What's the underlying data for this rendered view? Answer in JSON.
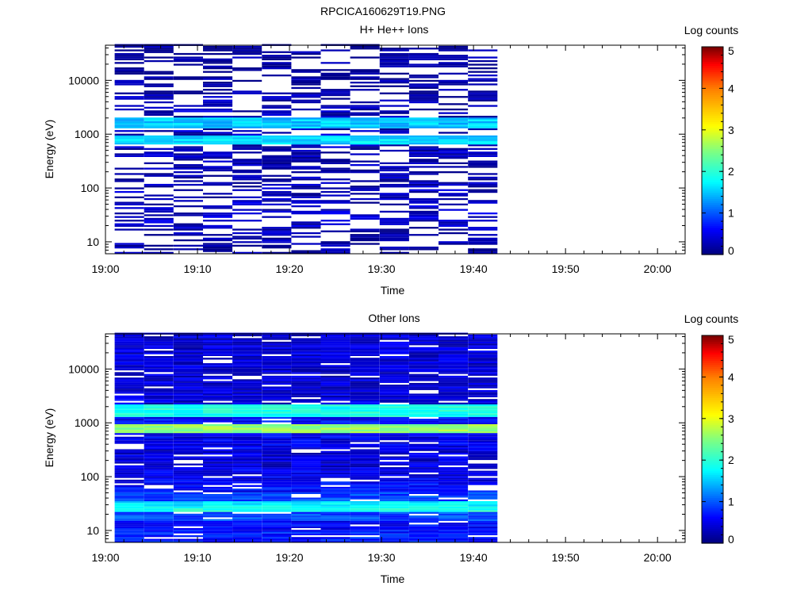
{
  "figure_title": "RPCICA160629T19.PNG",
  "chart_data": [
    {
      "type": "heatmap",
      "title": "H+ He++ Ions",
      "xlabel": "Time",
      "ylabel": "Energy (eV)",
      "x_ticks": [
        "19:00",
        "19:10",
        "19:20",
        "19:30",
        "19:40",
        "19:50",
        "20:00"
      ],
      "x_range_minutes": [
        0,
        63
      ],
      "y_scale": "log",
      "y_range": [
        6,
        45000
      ],
      "y_ticks": [
        10,
        100,
        1000,
        10000
      ],
      "colorbar": {
        "label": "Log counts",
        "range": [
          0,
          5
        ],
        "ticks": [
          0,
          1,
          2,
          3,
          4,
          5
        ],
        "colormap": "rainbow"
      },
      "time_bins_minutes": [
        1.0,
        4.2,
        7.4,
        10.6,
        13.8,
        17.0,
        20.2,
        23.4,
        26.6,
        29.8,
        33.0,
        36.2,
        39.4,
        42.6
      ],
      "data_end_minutes": 42.6,
      "seed": 7,
      "occupancy": 0.45,
      "bands": [
        {
          "energy": 10,
          "value": 0.15
        },
        {
          "energy": 16,
          "value": 0.2
        },
        {
          "energy": 22,
          "value": 0.3
        },
        {
          "energy": 35,
          "value": 0.35
        },
        {
          "energy": 50,
          "value": 0.3
        },
        {
          "energy": 80,
          "value": 0.25
        },
        {
          "energy": 150,
          "value": 0.2
        },
        {
          "energy": 300,
          "value": 0.2
        },
        {
          "energy": 500,
          "value": 0.25
        },
        {
          "energy": 800,
          "value": 1.6
        },
        {
          "energy": 1000,
          "value": 0.3
        },
        {
          "energy": 1600,
          "value": 1.5
        },
        {
          "energy": 2300,
          "value": 0.25
        },
        {
          "energy": 3000,
          "value": 0.2
        },
        {
          "energy": 10500,
          "value": 0.1
        },
        {
          "energy": 15000,
          "value": 0.1
        },
        {
          "energy": 24000,
          "value": 0.1
        },
        {
          "energy": 31000,
          "value": 0.1
        }
      ]
    },
    {
      "type": "heatmap",
      "title": "Other Ions",
      "xlabel": "Time",
      "ylabel": "Energy (eV)",
      "x_ticks": [
        "19:00",
        "19:10",
        "19:20",
        "19:30",
        "19:40",
        "19:50",
        "20:00"
      ],
      "x_range_minutes": [
        0,
        63
      ],
      "y_scale": "log",
      "y_range": [
        6,
        45000
      ],
      "y_ticks": [
        10,
        100,
        1000,
        10000
      ],
      "colorbar": {
        "label": "Log counts",
        "range": [
          0,
          5
        ],
        "ticks": [
          0,
          1,
          2,
          3,
          4,
          5
        ],
        "colormap": "rainbow"
      },
      "time_bins_minutes": [
        1.0,
        4.2,
        7.4,
        10.6,
        13.8,
        17.0,
        20.2,
        23.4,
        26.6,
        29.8,
        33.0,
        36.2,
        39.4,
        42.6
      ],
      "data_end_minutes": 42.6,
      "seed": 3,
      "occupancy": 0.9,
      "bands": [
        {
          "energy": 8,
          "value": 0.7
        },
        {
          "energy": 12,
          "value": 0.6
        },
        {
          "energy": 17,
          "value": 0.9
        },
        {
          "energy": 25,
          "value": 1.9
        },
        {
          "energy": 30,
          "value": 1.7
        },
        {
          "energy": 40,
          "value": 0.9
        },
        {
          "energy": 60,
          "value": 0.6
        },
        {
          "energy": 100,
          "value": 0.5
        },
        {
          "energy": 200,
          "value": 0.4
        },
        {
          "energy": 500,
          "value": 0.5
        },
        {
          "energy": 800,
          "value": 2.6
        },
        {
          "energy": 1000,
          "value": 0.6
        },
        {
          "energy": 1600,
          "value": 1.9
        },
        {
          "energy": 3000,
          "value": 0.4
        },
        {
          "energy": 10000,
          "value": 0.4
        },
        {
          "energy": 30000,
          "value": 0.4
        }
      ]
    }
  ]
}
